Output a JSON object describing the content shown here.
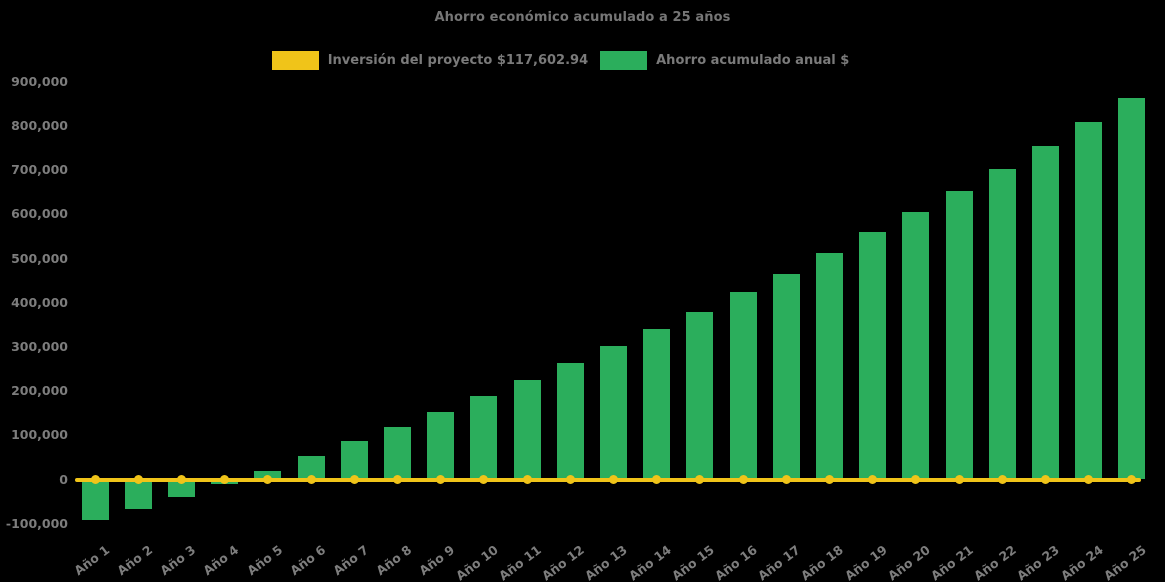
{
  "title": "Ahorro económico acumulado a 25 años",
  "legend": [
    {
      "label": "Inversión del proyecto $117,602.94",
      "color": "#F0C419"
    },
    {
      "label": "Ahorro acumulado anual $",
      "color": "#2BAE5C"
    }
  ],
  "chart_data": {
    "type": "bar",
    "title": "Ahorro económico acumulado a 25 años",
    "xlabel": "",
    "ylabel": "",
    "background": "#000000",
    "text_color": "#7A7A7A",
    "grid": false,
    "legend_position": "top",
    "ylim": [
      -100000,
      900000
    ],
    "categories": [
      "Año 1",
      "Año 2",
      "Año 3",
      "Año 4",
      "Año 5",
      "Año 6",
      "Año 7",
      "Año 8",
      "Año 9",
      "Año 10",
      "Año 11",
      "Año 12",
      "Año 13",
      "Año 14",
      "Año 15",
      "Año 16",
      "Año 17",
      "Año 18",
      "Año 19",
      "Año 20",
      "Año 21",
      "Año 22",
      "Año 23",
      "Año 24",
      "Año 25"
    ],
    "series": [
      {
        "name": "Ahorro acumulado anual $",
        "type": "bar",
        "color": "#2BAE5C",
        "values": [
          -92000,
          -67000,
          -40000,
          -10000,
          20000,
          53000,
          86000,
          119000,
          152000,
          189000,
          225000,
          263000,
          303000,
          340000,
          380000,
          424000,
          464000,
          513000,
          560000,
          606000,
          653000,
          702000,
          755000,
          808000,
          862000
        ]
      },
      {
        "name": "Inversión del proyecto $117,602.94",
        "type": "line",
        "color": "#F0C419",
        "marker": "circle",
        "values": [
          0,
          0,
          0,
          0,
          0,
          0,
          0,
          0,
          0,
          0,
          0,
          0,
          0,
          0,
          0,
          0,
          0,
          0,
          0,
          0,
          0,
          0,
          0,
          0,
          0
        ]
      }
    ],
    "yticks": [
      {
        "value": 900000,
        "label": "900,000"
      },
      {
        "value": 800000,
        "label": "800,000"
      },
      {
        "value": 700000,
        "label": "700,000"
      },
      {
        "value": 600000,
        "label": "600,000"
      },
      {
        "value": 500000,
        "label": "500,000"
      },
      {
        "value": 400000,
        "label": "400,000"
      },
      {
        "value": 300000,
        "label": "300,000"
      },
      {
        "value": 200000,
        "label": "200,000"
      },
      {
        "value": 100000,
        "label": "100,000"
      },
      {
        "value": 0,
        "label": "0"
      },
      {
        "value": -100000,
        "label": "-100,000"
      }
    ]
  }
}
